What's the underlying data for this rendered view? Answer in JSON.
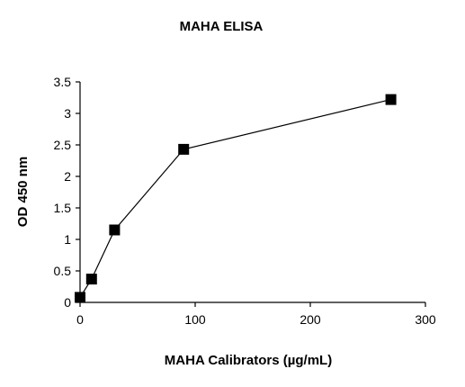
{
  "chart_data": {
    "type": "scatter",
    "title": "MAHA ELISA",
    "xlabel": "MAHA Calibrators (µg/mL)",
    "ylabel": "OD 450 nm",
    "xlim": [
      0,
      300
    ],
    "ylim": [
      0,
      3.5
    ],
    "xticks": [
      0,
      100,
      200,
      300
    ],
    "xtick_labels": [
      "0",
      "100",
      "200",
      "300"
    ],
    "yticks": [
      0,
      0.5,
      1,
      1.5,
      2,
      2.5,
      3,
      3.5
    ],
    "ytick_labels": [
      "0",
      "0.5",
      "1",
      "1.5",
      "2",
      "2.5",
      "3",
      "3.5"
    ],
    "grid": false,
    "legend": "none",
    "marker": "square",
    "connected": true,
    "series": [
      {
        "x": [
          0,
          10,
          30,
          90,
          270
        ],
        "y": [
          0.08,
          0.37,
          1.15,
          2.43,
          3.22
        ],
        "color": "#000000"
      }
    ]
  }
}
